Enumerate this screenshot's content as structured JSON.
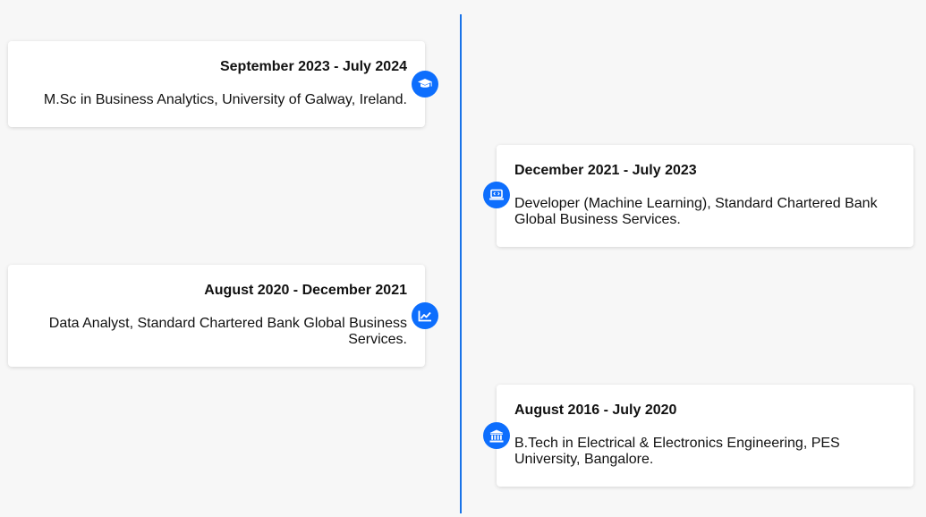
{
  "timeline": {
    "items": [
      {
        "date": "September 2023 - July 2024",
        "description": "M.Sc in Business Analytics, University of Galway, Ireland.",
        "icon": "graduation-cap-icon"
      },
      {
        "date": "December 2021 - July 2023",
        "description": "Developer (Machine Learning), Standard Chartered Bank Global Business Services.",
        "icon": "laptop-code-icon"
      },
      {
        "date": "August 2020 - December 2021",
        "description": "Data Analyst, Standard Chartered Bank Global Business Services.",
        "icon": "line-chart-icon"
      },
      {
        "date": "August 2016 - July 2020",
        "description": "B.Tech in Electrical & Electronics Engineering, PES University, Bangalore.",
        "icon": "university-icon"
      }
    ],
    "colors": {
      "accent": "#0d6efd",
      "line": "#1a73e8",
      "background": "#f7f7f7",
      "card": "#ffffff"
    }
  }
}
